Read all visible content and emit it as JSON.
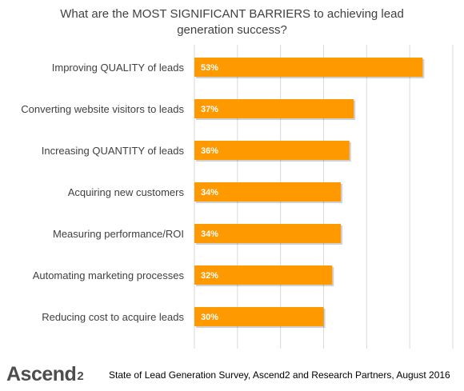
{
  "title": "What are the MOST SIGNIFICANT  BARRIERS to achieving lead\ngeneration success?",
  "source_note": "State of Lead Generation Survey, Ascend2 and Research Partners, August 2016",
  "brand": {
    "name": "Ascend",
    "suffix": "2"
  },
  "colors": {
    "bar": "#ff9900",
    "bar_label": "#ffffff",
    "category_label": "#404040",
    "gridline": "#d9d9d9"
  },
  "chart_data": {
    "type": "bar",
    "orientation": "horizontal",
    "title": "What are the MOST SIGNIFICANT  BARRIERS to achieving lead generation success?",
    "categories": [
      "Improving QUALITY of leads",
      "Converting website visitors to leads",
      "Increasing QUANTITY of leads",
      "Acquiring new customers",
      "Measuring performance/ROI",
      "Automating marketing processes",
      "Reducing cost to acquire leads"
    ],
    "values": [
      53,
      37,
      36,
      34,
      34,
      32,
      30
    ],
    "value_labels": [
      "53%",
      "37%",
      "36%",
      "34%",
      "34%",
      "32%",
      "30%"
    ],
    "unit": "%",
    "xlim": [
      0,
      60
    ],
    "grid": true,
    "legend": "none",
    "xlabel": "",
    "ylabel": ""
  }
}
